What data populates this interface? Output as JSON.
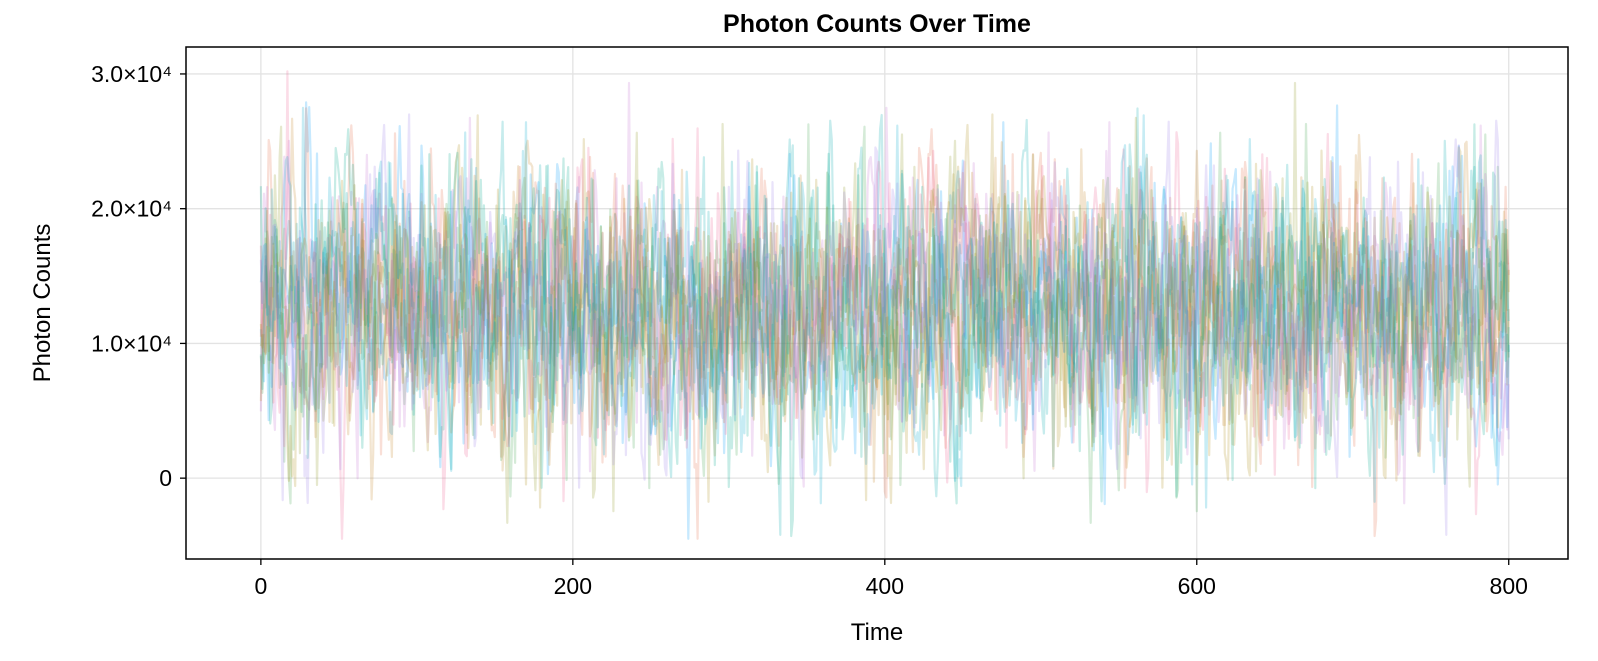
{
  "chart_data": {
    "type": "line",
    "title": "Photon Counts Over Time",
    "xlabel": "Time",
    "ylabel": "Photon Counts",
    "xlim": [
      -48,
      838
    ],
    "ylim": [
      -6000,
      32000
    ],
    "x_ticks": [
      {
        "value": 0,
        "label": "0"
      },
      {
        "value": 200,
        "label": "200"
      },
      {
        "value": 400,
        "label": "400"
      },
      {
        "value": 600,
        "label": "600"
      },
      {
        "value": 800,
        "label": "800"
      }
    ],
    "y_ticks": [
      {
        "value": 0,
        "label": "0"
      },
      {
        "value": 10000,
        "label": "1.0×10⁴"
      },
      {
        "value": 20000,
        "label": "2.0×10⁴"
      },
      {
        "value": 30000,
        "label": "3.0×10⁴"
      }
    ],
    "grid": true,
    "x_range": [
      0,
      800
    ],
    "series_count": 12,
    "mean": 12500,
    "spread": 5000,
    "series_colors": [
      "#009afa",
      "#e36f47",
      "#3ea44e",
      "#c371d2",
      "#ac8e18",
      "#00aaae",
      "#ed5e93",
      "#c68225",
      "#00a98d",
      "#8e971e",
      "#00a9cd",
      "#9b7fe8"
    ],
    "approx_range_observed": [
      -4500,
      30200
    ]
  }
}
